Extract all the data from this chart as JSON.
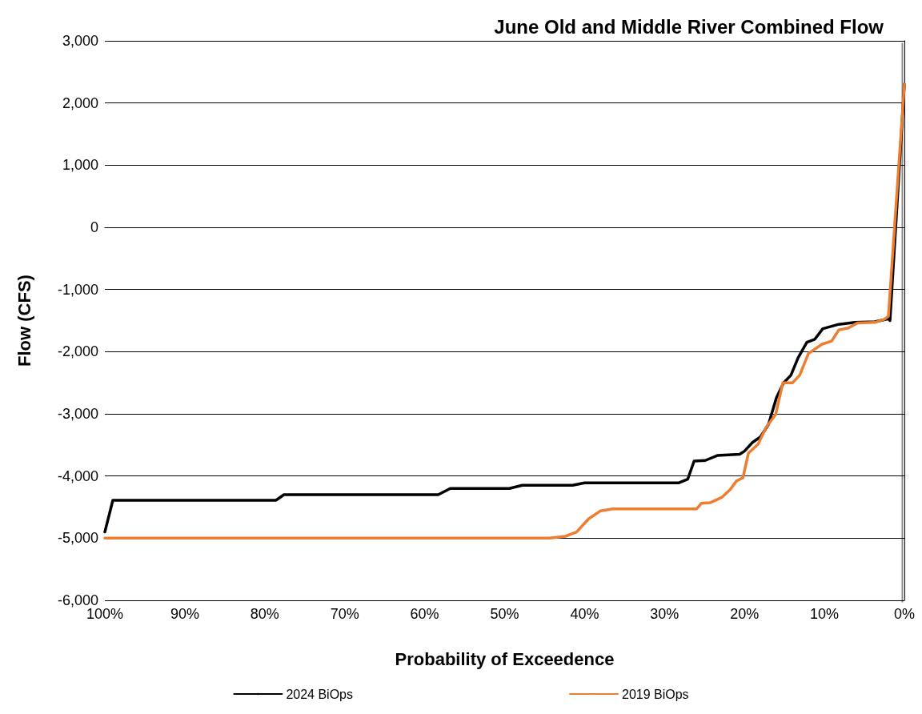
{
  "chart_data": {
    "type": "line",
    "title": "June Old and Middle River Combined Flow",
    "xlabel": "Probability of Exceedence",
    "ylabel": "Flow (CFS)",
    "xlim": [
      100,
      0
    ],
    "xticks": [
      {
        "value": 100,
        "label": "100%"
      },
      {
        "value": 90,
        "label": "90%"
      },
      {
        "value": 80,
        "label": "80%"
      },
      {
        "value": 70,
        "label": "70%"
      },
      {
        "value": 60,
        "label": "60%"
      },
      {
        "value": 50,
        "label": "50%"
      },
      {
        "value": 40,
        "label": "40%"
      },
      {
        "value": 30,
        "label": "30%"
      },
      {
        "value": 20,
        "label": "20%"
      },
      {
        "value": 10,
        "label": "10%"
      },
      {
        "value": 0,
        "label": "0%"
      }
    ],
    "ylim": [
      -6000,
      3000
    ],
    "yticks": [
      {
        "value": -6000,
        "label": "-6,000"
      },
      {
        "value": -5000,
        "label": "-5,000"
      },
      {
        "value": -4000,
        "label": "-4,000"
      },
      {
        "value": -3000,
        "label": "-3,000"
      },
      {
        "value": -2000,
        "label": "-2,000"
      },
      {
        "value": -1000,
        "label": "-1,000"
      },
      {
        "value": 0,
        "label": "0"
      },
      {
        "value": 1000,
        "label": "1,000"
      },
      {
        "value": 2000,
        "label": "2,000"
      },
      {
        "value": 3000,
        "label": "3,000"
      }
    ],
    "grid": "y",
    "legend": "bottom",
    "marker": "none",
    "line_style": "solid",
    "series": [
      {
        "name": "2024 BiOps",
        "color": "#000000",
        "x": [
          100,
          99,
          78.6,
          77.6,
          58.3,
          56.8,
          49.4,
          47.8,
          41.5,
          40,
          28.2,
          27.1,
          26.3,
          24.9,
          23.4,
          20.6,
          20,
          19,
          18,
          17,
          16,
          15.1,
          14.2,
          13.3,
          12.2,
          11.2,
          10.2,
          8.2,
          6.2,
          3.7,
          2,
          1.8,
          0
        ],
        "values": [
          -4900,
          -4390,
          -4390,
          -4300,
          -4300,
          -4200,
          -4200,
          -4150,
          -4150,
          -4110,
          -4110,
          -4050,
          -3760,
          -3750,
          -3670,
          -3650,
          -3600,
          -3460,
          -3370,
          -3170,
          -2740,
          -2500,
          -2380,
          -2100,
          -1850,
          -1800,
          -1630,
          -1560,
          -1530,
          -1520,
          -1470,
          -1500,
          2300
        ]
      },
      {
        "name": "2019 BiOps",
        "color": "#ed7d31",
        "x": [
          100,
          44.4,
          42.4,
          41,
          39.5,
          38,
          36.5,
          28.5,
          26,
          25.4,
          24.3,
          22.8,
          21.8,
          21,
          20.2,
          19.5,
          18.3,
          17.3,
          16.1,
          15.2,
          14,
          13.1,
          12,
          10.3,
          9.1,
          8.2,
          7,
          5.9,
          3.7,
          2.5,
          2,
          0
        ],
        "values": [
          -5000,
          -5000,
          -4970,
          -4900,
          -4690,
          -4560,
          -4530,
          -4530,
          -4530,
          -4440,
          -4430,
          -4340,
          -4220,
          -4080,
          -4030,
          -3630,
          -3490,
          -3220,
          -3010,
          -2500,
          -2500,
          -2380,
          -2030,
          -1880,
          -1830,
          -1650,
          -1620,
          -1540,
          -1530,
          -1480,
          -1430,
          2300
        ]
      }
    ]
  }
}
